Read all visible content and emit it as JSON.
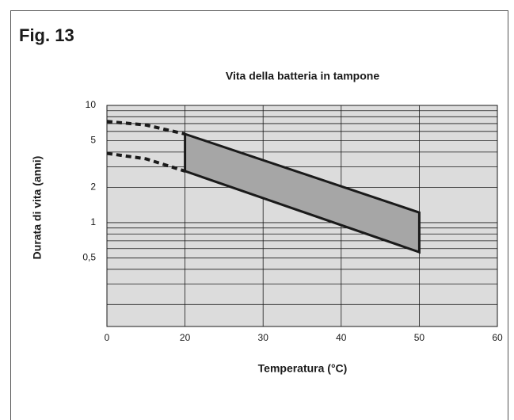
{
  "figure_label": "Fig. 13",
  "chart_data": {
    "type": "line",
    "title": "Vita della batteria in tampone",
    "x_label": "Temperatura (°C)",
    "y_label": "Durata di vita (anni)",
    "xlim": [
      0,
      60
    ],
    "xticks": [
      0,
      20,
      30,
      40,
      50,
      60
    ],
    "ylim": [
      0.13,
      10
    ],
    "log_y": true,
    "yticks": [
      {
        "value": 0.5,
        "label": "0,5"
      },
      1,
      2,
      5,
      10
    ],
    "yminor_ticks": [
      0.2,
      0.3,
      0.4,
      0.6,
      0.7,
      0.8,
      0.9,
      3,
      4,
      6,
      7,
      8,
      9
    ],
    "grid": true,
    "background": "#dcdcdc",
    "series": [
      {
        "x": [
          0,
          10,
          20
        ],
        "values": [
          7.3,
          6.8,
          5.7
        ],
        "color": "#1a1a1a",
        "dashed": true
      },
      {
        "x": [
          0,
          10,
          20
        ],
        "values": [
          3.9,
          3.5,
          2.75
        ],
        "color": "#1a1a1a",
        "dashed": true
      }
    ],
    "band": {
      "x": [
        20,
        50
      ],
      "upper": [
        5.7,
        1.22
      ],
      "lower": [
        2.75,
        0.56
      ],
      "color": "#a6a6a6"
    }
  }
}
